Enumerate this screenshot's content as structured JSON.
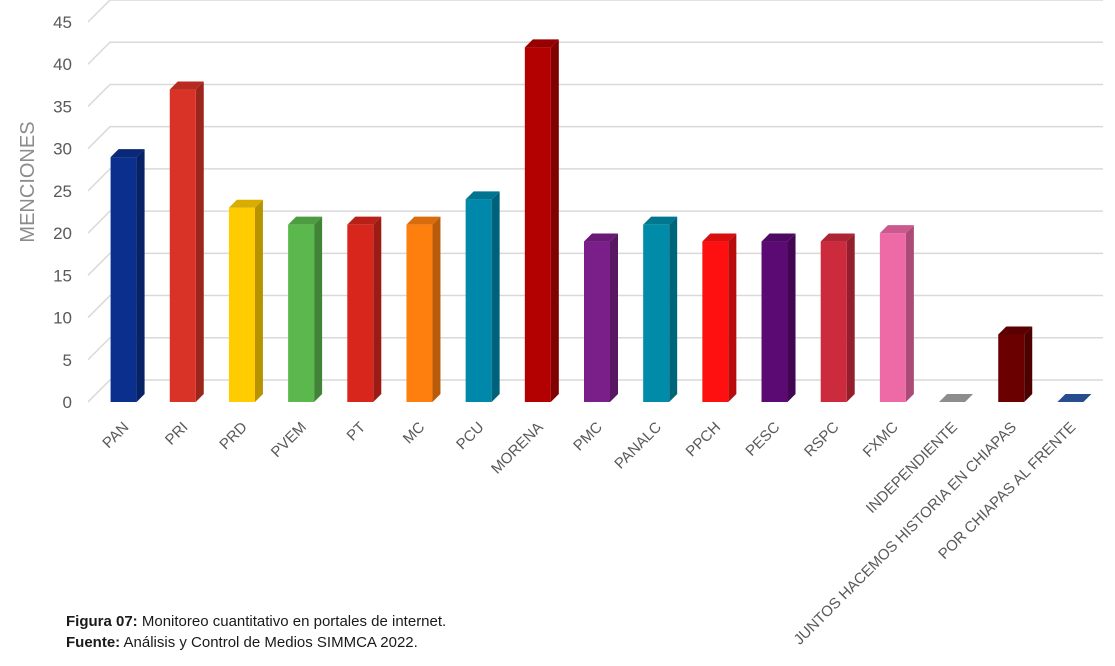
{
  "chart_data": {
    "type": "bar",
    "ylabel": "MENCIONES",
    "ylim": [
      0,
      45
    ],
    "yticks": [
      0,
      5,
      10,
      15,
      20,
      25,
      30,
      35,
      40,
      45
    ],
    "grid": true,
    "categories": [
      "PAN",
      "PRI",
      "PRD",
      "PVEM",
      "PT",
      "MC",
      "PCU",
      "MORENA",
      "PMC",
      "PANALC",
      "PPCH",
      "PESC",
      "RSPC",
      "FXMC",
      "INDEPENDIENTE",
      "JUNTOS HACEMOS HISTORIA EN CHIAPAS",
      "POR CHIAPAS AL FRENTE"
    ],
    "values": [
      29,
      37,
      23,
      21,
      21,
      21,
      24,
      42,
      19,
      21,
      19,
      19,
      19,
      20,
      0,
      8,
      0
    ],
    "colors": [
      "#0a2f8c",
      "#d93327",
      "#ffcc00",
      "#5ab84c",
      "#d9261c",
      "#ff7f0e",
      "#0088aa",
      "#b30000",
      "#7a1f8a",
      "#008ca8",
      "#ff1010",
      "#5c0a73",
      "#cc2b3e",
      "#ee6aa7",
      "#a6a6a6",
      "#6b0000",
      "#2e5aa8"
    ]
  },
  "caption": {
    "figure_label": "Figura 07:",
    "figure_text": " Monitoreo cuantitativo en portales de internet.",
    "source_label": "Fuente:",
    "source_text": " Análisis y Control de Medios SIMMCA 2022."
  }
}
